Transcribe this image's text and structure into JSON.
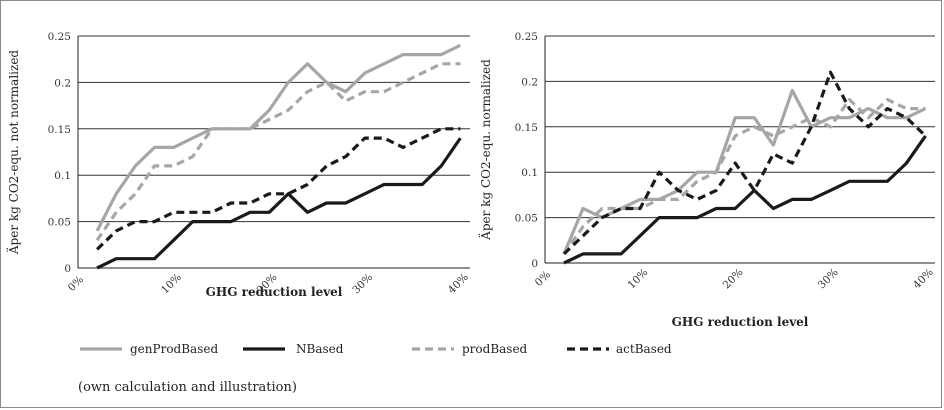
{
  "caption": "(own calculation and illustration)",
  "colors": {
    "genProdBased": "#a6a6a6",
    "NBased": "#1a1a1a",
    "prodBased": "#a6a6a6",
    "actBased": "#1a1a1a"
  },
  "legend": [
    {
      "name": "genProdBased",
      "color": "#a6a6a6",
      "dash": "solid"
    },
    {
      "name": "NBased",
      "color": "#1a1a1a",
      "dash": "solid"
    },
    {
      "name": "prodBased",
      "color": "#a6a6a6",
      "dash": "dashed"
    },
    {
      "name": "actBased",
      "color": "#1a1a1a",
      "dash": "dashed"
    }
  ],
  "chart_data": [
    {
      "type": "line",
      "ylabel": "Äper kg CO2-equ. not normalized",
      "xlabel": "GHG reduction level",
      "ylim": [
        0,
        0.25
      ],
      "yticks": [
        "0",
        "0.05",
        "0.1",
        "0.15",
        "0.2",
        "0.25"
      ],
      "xticks": [
        "0%",
        "10%",
        "20%",
        "30%",
        "40%"
      ],
      "x": [
        2,
        4,
        6,
        8,
        10,
        12,
        14,
        16,
        18,
        20,
        22,
        24,
        26,
        28,
        30,
        32,
        34,
        36,
        38,
        40
      ],
      "grid": "horizontal",
      "series": [
        {
          "name": "genProdBased",
          "values": [
            0.04,
            0.08,
            0.11,
            0.13,
            0.13,
            0.14,
            0.15,
            0.15,
            0.15,
            0.17,
            0.2,
            0.22,
            0.2,
            0.19,
            0.21,
            0.22,
            0.23,
            0.23,
            0.23,
            0.24
          ]
        },
        {
          "name": "NBased",
          "values": [
            0.0,
            0.01,
            0.01,
            0.01,
            0.03,
            0.05,
            0.05,
            0.05,
            0.06,
            0.06,
            0.08,
            0.06,
            0.07,
            0.07,
            0.08,
            0.09,
            0.09,
            0.09,
            0.11,
            0.14
          ]
        },
        {
          "name": "prodBased",
          "values": [
            0.03,
            0.06,
            0.08,
            0.11,
            0.11,
            0.12,
            0.15,
            0.15,
            0.15,
            0.16,
            0.17,
            0.19,
            0.2,
            0.18,
            0.19,
            0.19,
            0.2,
            0.21,
            0.22,
            0.22
          ]
        },
        {
          "name": "actBased",
          "values": [
            0.02,
            0.04,
            0.05,
            0.05,
            0.06,
            0.06,
            0.06,
            0.07,
            0.07,
            0.08,
            0.08,
            0.09,
            0.11,
            0.12,
            0.14,
            0.14,
            0.13,
            0.14,
            0.15,
            0.15
          ]
        }
      ]
    },
    {
      "type": "line",
      "ylabel": "Äper kg CO2-equ. normalized",
      "xlabel": "GHG reduction level",
      "ylim": [
        0,
        0.25
      ],
      "yticks": [
        "0",
        "0.05",
        "0.1",
        "0.15",
        "0.2",
        "0.25"
      ],
      "xticks": [
        "0%",
        "10%",
        "20%",
        "30%",
        "40%"
      ],
      "x": [
        2,
        4,
        6,
        8,
        10,
        12,
        14,
        16,
        18,
        20,
        22,
        24,
        26,
        28,
        30,
        32,
        34,
        36,
        38,
        40
      ],
      "grid": "horizontal",
      "series": [
        {
          "name": "genProdBased",
          "values": [
            0.01,
            0.06,
            0.05,
            0.06,
            0.07,
            0.07,
            0.08,
            0.1,
            0.1,
            0.16,
            0.16,
            0.13,
            0.19,
            0.15,
            0.16,
            0.16,
            0.17,
            0.16,
            0.16,
            0.17
          ]
        },
        {
          "name": "NBased",
          "values": [
            0.0,
            0.01,
            0.01,
            0.01,
            0.03,
            0.05,
            0.05,
            0.05,
            0.06,
            0.06,
            0.08,
            0.06,
            0.07,
            0.07,
            0.08,
            0.09,
            0.09,
            0.09,
            0.11,
            0.14
          ]
        },
        {
          "name": "prodBased",
          "values": [
            0.01,
            0.04,
            0.06,
            0.06,
            0.06,
            0.07,
            0.07,
            0.09,
            0.1,
            0.14,
            0.15,
            0.14,
            0.15,
            0.16,
            0.15,
            0.18,
            0.16,
            0.18,
            0.17,
            0.17
          ]
        },
        {
          "name": "actBased",
          "values": [
            0.01,
            0.03,
            0.05,
            0.06,
            0.06,
            0.1,
            0.08,
            0.07,
            0.08,
            0.11,
            0.08,
            0.12,
            0.11,
            0.15,
            0.21,
            0.17,
            0.15,
            0.17,
            0.16,
            0.14
          ]
        }
      ]
    }
  ]
}
